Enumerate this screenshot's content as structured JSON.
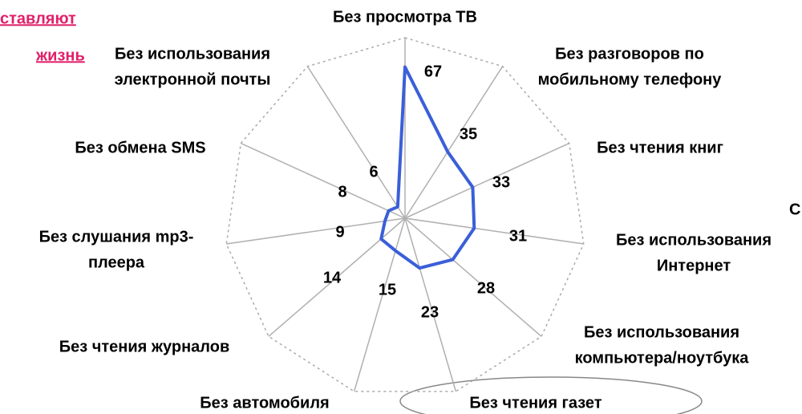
{
  "chart_data": {
    "type": "radar",
    "categories": [
      [
        "Без просмотра ТВ"
      ],
      [
        "Без разговоров по",
        "мобильному телефону"
      ],
      [
        "Без чтения книг"
      ],
      [
        "Без использования",
        "Интернет"
      ],
      [
        "Без использования",
        "компьютера/ноутбука"
      ],
      [
        "Без чтения газет"
      ],
      [
        "Без автомобиля"
      ],
      [
        "Без чтения журналов"
      ],
      [
        "Без слушания mp3-",
        "плеера"
      ],
      [
        "Без обмена SMS"
      ],
      [
        "Без использования",
        "электронной почты"
      ]
    ],
    "values": [
      67,
      35,
      33,
      31,
      28,
      23,
      15,
      14,
      9,
      8,
      6
    ],
    "color": "#3b5fd8",
    "rlim": [
      0,
      80
    ],
    "fragments": [
      "ставляют",
      "жизнь",
      "С"
    ]
  }
}
